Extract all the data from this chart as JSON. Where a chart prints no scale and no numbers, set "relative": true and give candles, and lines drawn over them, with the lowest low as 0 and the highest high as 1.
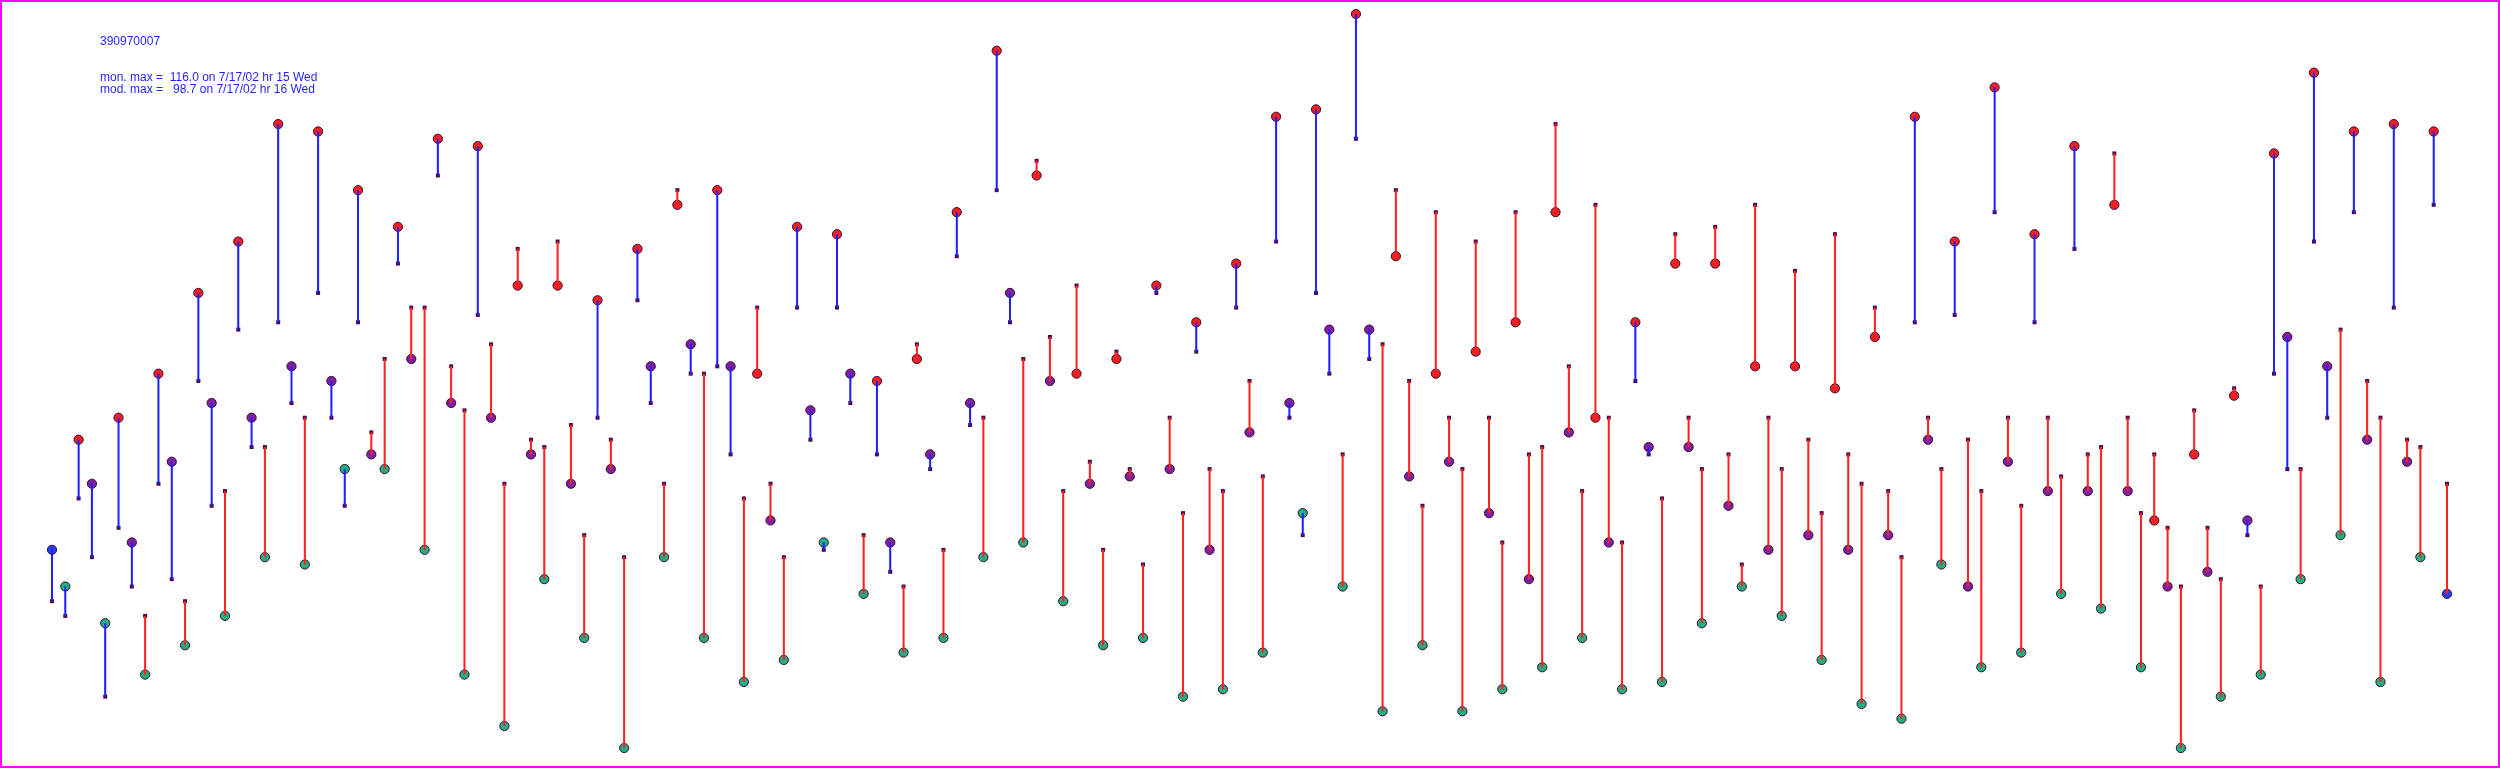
{
  "chart_data": {
    "type": "candlestick",
    "title": "390970007",
    "annotations": [
      "mon. max =  116.0 on 7/17/02 hr 15 Wed",
      "mod. max =   98.7 on 7/17/02 hr 16 Wed"
    ],
    "relative": true,
    "categories": [
      null,
      null,
      null,
      null,
      null,
      null,
      null,
      null,
      null,
      null,
      null,
      null,
      null,
      null,
      null,
      null,
      null,
      null,
      null,
      null,
      null,
      null,
      null,
      null,
      null,
      null,
      null,
      null,
      null,
      null,
      null,
      null,
      null,
      null,
      null,
      null,
      null,
      null,
      null,
      null,
      null,
      null,
      null,
      null,
      null,
      null,
      null,
      null,
      null,
      null,
      null,
      null,
      null,
      null,
      null,
      null,
      null,
      null,
      null,
      null,
      null,
      null,
      null,
      null,
      null,
      null,
      null,
      null,
      null,
      null,
      null,
      null,
      null,
      null,
      null,
      null,
      null,
      null,
      null,
      null,
      null,
      null,
      null,
      null,
      null,
      null,
      null,
      null,
      null,
      null,
      null,
      null,
      null,
      null,
      null,
      null,
      null,
      null,
      null,
      null,
      null,
      null,
      null,
      null,
      null,
      null,
      null,
      null,
      null,
      null,
      null,
      null,
      null,
      null,
      null,
      null,
      null,
      null,
      null,
      null,
      null,
      null,
      null,
      null,
      null,
      null,
      null,
      null,
      null,
      null,
      null,
      null,
      null,
      null,
      null,
      null,
      null,
      null,
      null,
      null,
      null,
      null,
      null,
      null,
      null,
      null,
      null,
      null,
      null,
      null,
      null,
      null,
      null,
      null,
      null,
      null,
      null,
      null,
      null,
      null,
      null,
      null,
      null,
      null,
      null,
      null,
      null,
      null,
      null,
      null,
      null,
      null,
      null,
      null,
      null,
      null,
      null,
      null,
      null,
      null,
      null
    ],
    "ohlc": [
      [
        0.27,
        0.27,
        0.2,
        0.2
      ],
      [
        0.22,
        0.22,
        0.18,
        0.18
      ],
      [
        0.42,
        0.42,
        0.34,
        0.34
      ],
      [
        0.36,
        0.36,
        0.26,
        0.26
      ],
      [
        0.17,
        0.17,
        0.07,
        0.07
      ],
      [
        0.45,
        0.45,
        0.3,
        0.3
      ],
      [
        0.28,
        0.28,
        0.22,
        0.22
      ],
      [
        0.1,
        0.18,
        0.1,
        0.18
      ],
      [
        0.51,
        0.51,
        0.36,
        0.36
      ],
      [
        0.39,
        0.39,
        0.23,
        0.23
      ],
      [
        0.14,
        0.2,
        0.14,
        0.2
      ],
      [
        0.62,
        0.62,
        0.5,
        0.5
      ],
      [
        0.47,
        0.47,
        0.33,
        0.33
      ],
      [
        0.18,
        0.35,
        0.18,
        0.35
      ],
      [
        0.69,
        0.69,
        0.57,
        0.57
      ],
      [
        0.45,
        0.45,
        0.41,
        0.41
      ],
      [
        0.26,
        0.41,
        0.26,
        0.41
      ],
      [
        0.85,
        0.85,
        0.58,
        0.58
      ],
      [
        0.52,
        0.52,
        0.47,
        0.47
      ],
      [
        0.25,
        0.45,
        0.25,
        0.45
      ],
      [
        0.84,
        0.84,
        0.62,
        0.62
      ],
      [
        0.5,
        0.5,
        0.45,
        0.45
      ],
      [
        0.38,
        0.38,
        0.33,
        0.33
      ],
      [
        0.76,
        0.76,
        0.58,
        0.58
      ],
      [
        0.4,
        0.43,
        0.4,
        0.43
      ],
      [
        0.38,
        0.53,
        0.38,
        0.53
      ],
      [
        0.71,
        0.71,
        0.66,
        0.66
      ],
      [
        0.53,
        0.6,
        0.53,
        0.6
      ],
      [
        0.27,
        0.6,
        0.27,
        0.6
      ],
      [
        0.83,
        0.83,
        0.78,
        0.78
      ],
      [
        0.47,
        0.52,
        0.47,
        0.52
      ],
      [
        0.1,
        0.46,
        0.1,
        0.46
      ],
      [
        0.82,
        0.82,
        0.59,
        0.59
      ],
      [
        0.45,
        0.55,
        0.45,
        0.55
      ],
      [
        0.03,
        0.36,
        0.03,
        0.36
      ],
      [
        0.63,
        0.68,
        0.63,
        0.68
      ],
      [
        0.4,
        0.42,
        0.4,
        0.42
      ],
      [
        0.23,
        0.41,
        0.23,
        0.41
      ],
      [
        0.63,
        0.69,
        0.63,
        0.69
      ],
      [
        0.36,
        0.44,
        0.36,
        0.44
      ],
      [
        0.15,
        0.29,
        0.15,
        0.29
      ],
      [
        0.61,
        0.61,
        0.45,
        0.45
      ],
      [
        0.38,
        0.42,
        0.38,
        0.42
      ],
      [
        0,
        0.26,
        0,
        0.26
      ],
      [
        0.68,
        0.68,
        0.61,
        0.61
      ],
      [
        0.52,
        0.52,
        0.47,
        0.47
      ],
      [
        0.26,
        0.36,
        0.26,
        0.36
      ],
      [
        0.74,
        0.76,
        0.74,
        0.76
      ],
      [
        0.55,
        0.55,
        0.51,
        0.51
      ],
      [
        0.15,
        0.51,
        0.15,
        0.51
      ],
      [
        0.76,
        0.76,
        0.52,
        0.52
      ],
      [
        0.52,
        0.52,
        0.4,
        0.4
      ],
      [
        0.09,
        0.34,
        0.09,
        0.34
      ],
      [
        0.51,
        0.6,
        0.51,
        0.6
      ],
      [
        0.31,
        0.36,
        0.31,
        0.36
      ],
      [
        0.12,
        0.26,
        0.12,
        0.26
      ],
      [
        0.71,
        0.71,
        0.6,
        0.6
      ],
      [
        0.46,
        0.46,
        0.42,
        0.42
      ],
      [
        0.28,
        0.28,
        0.27,
        0.27
      ],
      [
        0.7,
        0.7,
        0.6,
        0.6
      ],
      [
        0.51,
        0.51,
        0.47,
        0.47
      ],
      [
        0.21,
        0.29,
        0.21,
        0.29
      ],
      [
        0.5,
        0.5,
        0.4,
        0.4
      ],
      [
        0.28,
        0.28,
        0.24,
        0.24
      ],
      [
        0.13,
        0.22,
        0.13,
        0.22
      ],
      [
        0.53,
        0.55,
        0.53,
        0.55
      ],
      [
        0.4,
        0.4,
        0.38,
        0.38
      ],
      [
        0.15,
        0.27,
        0.15,
        0.27
      ],
      [
        0.73,
        0.73,
        0.67,
        0.67
      ],
      [
        0.47,
        0.47,
        0.44,
        0.44
      ],
      [
        0.26,
        0.45,
        0.26,
        0.45
      ],
      [
        0.95,
        0.95,
        0.76,
        0.76
      ],
      [
        0.62,
        0.62,
        0.58,
        0.58
      ],
      [
        0.28,
        0.53,
        0.28,
        0.53
      ],
      [
        0.78,
        0.8,
        0.78,
        0.8
      ],
      [
        0.5,
        0.56,
        0.5,
        0.56
      ],
      [
        0.2,
        0.35,
        0.2,
        0.35
      ],
      [
        0.51,
        0.63,
        0.51,
        0.63
      ],
      [
        0.36,
        0.39,
        0.36,
        0.39
      ],
      [
        0.14,
        0.27,
        0.14,
        0.27
      ],
      [
        0.53,
        0.54,
        0.53,
        0.54
      ],
      [
        0.37,
        0.38,
        0.37,
        0.38
      ],
      [
        0.15,
        0.25,
        0.15,
        0.25
      ],
      [
        0.63,
        0.63,
        0.62,
        0.62
      ],
      [
        0.38,
        0.45,
        0.38,
        0.45
      ],
      [
        0.07,
        0.32,
        0.07,
        0.32
      ],
      [
        0.58,
        0.58,
        0.54,
        0.54
      ],
      [
        0.27,
        0.38,
        0.27,
        0.38
      ],
      [
        0.08,
        0.35,
        0.08,
        0.35
      ],
      [
        0.66,
        0.66,
        0.6,
        0.6
      ],
      [
        0.43,
        0.5,
        0.43,
        0.5
      ],
      [
        0.13,
        0.37,
        0.13,
        0.37
      ],
      [
        0.86,
        0.86,
        0.69,
        0.69
      ],
      [
        0.47,
        0.47,
        0.45,
        0.45
      ],
      [
        0.32,
        0.32,
        0.29,
        0.29
      ],
      [
        0.87,
        0.87,
        0.62,
        0.62
      ],
      [
        0.57,
        0.57,
        0.51,
        0.51
      ],
      [
        0.22,
        0.4,
        0.22,
        0.4
      ],
      [
        1,
        1,
        0.83,
        0.83
      ],
      [
        0.57,
        0.57,
        0.53,
        0.53
      ],
      [
        0.05,
        0.55,
        0.05,
        0.55
      ],
      [
        0.67,
        0.76,
        0.67,
        0.76
      ],
      [
        0.37,
        0.5,
        0.37,
        0.5
      ],
      [
        0.14,
        0.33,
        0.14,
        0.33
      ],
      [
        0.51,
        0.73,
        0.51,
        0.73
      ],
      [
        0.39,
        0.45,
        0.39,
        0.45
      ],
      [
        0.05,
        0.38,
        0.05,
        0.38
      ],
      [
        0.54,
        0.69,
        0.54,
        0.69
      ],
      [
        0.32,
        0.45,
        0.32,
        0.45
      ],
      [
        0.08,
        0.28,
        0.08,
        0.28
      ],
      [
        0.58,
        0.73,
        0.58,
        0.73
      ],
      [
        0.23,
        0.4,
        0.23,
        0.4
      ],
      [
        0.11,
        0.41,
        0.11,
        0.41
      ],
      [
        0.73,
        0.85,
        0.73,
        0.85
      ],
      [
        0.43,
        0.52,
        0.43,
        0.52
      ],
      [
        0.15,
        0.35,
        0.15,
        0.35
      ],
      [
        0.45,
        0.74,
        0.45,
        0.74
      ],
      [
        0.28,
        0.45,
        0.28,
        0.45
      ],
      [
        0.08,
        0.28,
        0.08,
        0.28
      ],
      [
        0.58,
        0.58,
        0.5,
        0.5
      ],
      [
        0.41,
        0.41,
        0.4,
        0.4
      ],
      [
        0.09,
        0.34,
        0.09,
        0.34
      ],
      [
        0.66,
        0.7,
        0.66,
        0.7
      ],
      [
        0.41,
        0.45,
        0.41,
        0.45
      ],
      [
        0.17,
        0.38,
        0.17,
        0.38
      ],
      [
        0.66,
        0.71,
        0.66,
        0.71
      ],
      [
        0.33,
        0.4,
        0.33,
        0.4
      ],
      [
        0.22,
        0.25,
        0.22,
        0.25
      ],
      [
        0.52,
        0.74,
        0.52,
        0.74
      ],
      [
        0.27,
        0.45,
        0.27,
        0.45
      ],
      [
        0.18,
        0.38,
        0.18,
        0.38
      ],
      [
        0.52,
        0.65,
        0.52,
        0.65
      ],
      [
        0.29,
        0.42,
        0.29,
        0.42
      ],
      [
        0.12,
        0.32,
        0.12,
        0.32
      ],
      [
        0.49,
        0.7,
        0.49,
        0.7
      ],
      [
        0.27,
        0.4,
        0.27,
        0.4
      ],
      [
        0.06,
        0.36,
        0.06,
        0.36
      ],
      [
        0.56,
        0.6,
        0.56,
        0.6
      ],
      [
        0.29,
        0.35,
        0.29,
        0.35
      ],
      [
        0.04,
        0.26,
        0.04,
        0.26
      ],
      [
        0.86,
        0.86,
        0.58,
        0.58
      ],
      [
        0.42,
        0.45,
        0.42,
        0.45
      ],
      [
        0.25,
        0.38,
        0.25,
        0.38
      ],
      [
        0.69,
        0.69,
        0.59,
        0.59
      ],
      [
        0.22,
        0.42,
        0.22,
        0.42
      ],
      [
        0.11,
        0.35,
        0.11,
        0.35
      ],
      [
        0.9,
        0.9,
        0.73,
        0.73
      ],
      [
        0.39,
        0.45,
        0.39,
        0.45
      ],
      [
        0.13,
        0.33,
        0.13,
        0.33
      ],
      [
        0.7,
        0.7,
        0.58,
        0.58
      ],
      [
        0.35,
        0.45,
        0.35,
        0.45
      ],
      [
        0.21,
        0.37,
        0.21,
        0.37
      ],
      [
        0.82,
        0.82,
        0.68,
        0.68
      ],
      [
        0.35,
        0.4,
        0.35,
        0.4
      ],
      [
        0.19,
        0.41,
        0.19,
        0.41
      ],
      [
        0.74,
        0.81,
        0.74,
        0.81
      ],
      [
        0.35,
        0.45,
        0.35,
        0.45
      ],
      [
        0.11,
        0.32,
        0.11,
        0.32
      ],
      [
        0.31,
        0.4,
        0.31,
        0.4
      ],
      [
        0.22,
        0.3,
        0.22,
        0.3
      ],
      [
        0,
        0.22,
        0,
        0.22
      ],
      [
        0.4,
        0.46,
        0.4,
        0.46
      ],
      [
        0.24,
        0.3,
        0.24,
        0.3
      ],
      [
        0.07,
        0.23,
        0.07,
        0.23
      ],
      [
        0.48,
        0.49,
        0.48,
        0.49
      ],
      [
        0.31,
        0.31,
        0.29,
        0.29
      ],
      [
        0.1,
        0.22,
        0.1,
        0.22
      ],
      [
        0.81,
        0.81,
        0.51,
        0.51
      ],
      [
        0.56,
        0.56,
        0.38,
        0.38
      ],
      [
        0.23,
        0.38,
        0.23,
        0.38
      ],
      [
        0.92,
        0.92,
        0.69,
        0.69
      ],
      [
        0.52,
        0.52,
        0.45,
        0.45
      ],
      [
        0.29,
        0.57,
        0.29,
        0.57
      ],
      [
        0.84,
        0.84,
        0.73,
        0.73
      ],
      [
        0.42,
        0.5,
        0.42,
        0.5
      ],
      [
        0.09,
        0.45,
        0.09,
        0.45
      ],
      [
        0.85,
        0.85,
        0.6,
        0.6
      ],
      [
        0.39,
        0.42,
        0.39,
        0.42
      ],
      [
        0.26,
        0.41,
        0.26,
        0.41
      ],
      [
        0.84,
        0.84,
        0.74,
        0.74
      ],
      [
        0.21,
        0.36,
        0.21,
        0.36
      ]
    ],
    "colors": [
      "#2020ff",
      "#2020ff",
      "#2020ff",
      "#2020ff",
      "#2020ff",
      "#2020ff",
      "#2020ff",
      "#ff2020",
      "#2020ff",
      "#2020ff",
      "#ff2020",
      "#2020ff",
      "#2020ff",
      "#ff2020",
      "#2020ff",
      "#2020ff",
      "#ff2020",
      "#2020ff",
      "#2020ff",
      "#ff2020",
      "#2020ff",
      "#2020ff",
      "#2020ff",
      "#2020ff",
      "#ff2020",
      "#ff2020",
      "#2020ff",
      "#ff2020",
      "#ff2020",
      "#2020ff",
      "#ff2020",
      "#ff2020",
      "#2020ff",
      "#ff2020",
      "#ff2020",
      "#ff2020",
      "#ff2020",
      "#ff2020",
      "#ff2020",
      "#ff2020",
      "#ff2020",
      "#2020ff",
      "#ff2020",
      "#ff2020",
      "#2020ff",
      "#2020ff",
      "#ff2020",
      "#ff2020",
      "#2020ff",
      "#ff2020",
      "#2020ff",
      "#2020ff",
      "#ff2020",
      "#ff2020",
      "#ff2020",
      "#ff2020",
      "#2020ff",
      "#2020ff",
      "#2020ff",
      "#2020ff",
      "#2020ff",
      "#ff2020",
      "#2020ff",
      "#2020ff",
      "#ff2020",
      "#ff2020",
      "#2020ff",
      "#ff2020",
      "#2020ff",
      "#2020ff",
      "#ff2020",
      "#2020ff",
      "#2020ff",
      "#ff2020",
      "#ff2020",
      "#ff2020",
      "#ff2020",
      "#ff2020",
      "#ff2020",
      "#ff2020",
      "#ff2020",
      "#ff2020",
      "#ff2020",
      "#2020ff",
      "#ff2020",
      "#ff2020",
      "#2020ff",
      "#ff2020",
      "#ff2020",
      "#2020ff",
      "#ff2020",
      "#ff2020",
      "#2020ff",
      "#2020ff",
      "#2020ff",
      "#2020ff",
      "#2020ff",
      "#ff2020",
      "#2020ff",
      "#2020ff",
      "#ff2020",
      "#ff2020",
      "#ff2020",
      "#ff2020",
      "#ff2020",
      "#ff2020",
      "#ff2020",
      "#ff2020",
      "#ff2020",
      "#ff2020",
      "#ff2020",
      "#ff2020",
      "#ff2020",
      "#ff2020",
      "#ff2020",
      "#ff2020",
      "#ff2020",
      "#ff2020",
      "#ff2020",
      "#2020ff",
      "#2020ff",
      "#ff2020",
      "#ff2020",
      "#ff2020",
      "#ff2020",
      "#ff2020",
      "#ff2020",
      "#ff2020",
      "#ff2020",
      "#ff2020",
      "#ff2020",
      "#ff2020",
      "#ff2020",
      "#ff2020",
      "#ff2020",
      "#ff2020",
      "#ff2020",
      "#ff2020",
      "#ff2020",
      "#ff2020",
      "#2020ff",
      "#ff2020",
      "#ff2020",
      "#2020ff",
      "#ff2020",
      "#ff2020",
      "#2020ff",
      "#ff2020",
      "#ff2020",
      "#2020ff",
      "#ff2020",
      "#ff2020",
      "#2020ff",
      "#ff2020",
      "#ff2020",
      "#ff2020",
      "#ff2020",
      "#ff2020",
      "#ff2020",
      "#ff2020",
      "#ff2020",
      "#ff2020",
      "#ff2020",
      "#ff2020",
      "#ff2020",
      "#2020ff",
      "#ff2020",
      "#2020ff",
      "#2020ff",
      "#ff2020",
      "#2020ff",
      "#2020ff",
      "#ff2020",
      "#2020ff",
      "#ff2020",
      "#ff2020",
      "#2020ff",
      "#ff2020",
      "#ff2020",
      "#2020ff",
      "#ff2020"
    ],
    "series": [
      {
        "type": "scatter",
        "marker": "square",
        "color": "#4a0a4a",
        "values": [
          0.2,
          0.18,
          0.34,
          0.26,
          0.07,
          0.3,
          0.22,
          0.18,
          0.36,
          0.23,
          0.2,
          0.5,
          0.33,
          0.35,
          0.57,
          0.41,
          0.41,
          0.58,
          0.47,
          0.45,
          0.62,
          0.45,
          0.33,
          0.58,
          0.43,
          0.53,
          0.66,
          0.6,
          0.6,
          0.78,
          0.52,
          0.46,
          0.59,
          0.55,
          0.36,
          0.68,
          0.42,
          0.41,
          0.69,
          0.44,
          0.29,
          0.45,
          0.42,
          0.26,
          0.61,
          0.47,
          0.36,
          0.76,
          0.51,
          0.51,
          0.52,
          0.4,
          0.34,
          0.6,
          0.36,
          0.26,
          0.6,
          0.42,
          0.27,
          0.6,
          0.47,
          0.29,
          0.4,
          0.24,
          0.22,
          0.55,
          0.38,
          0.27,
          0.67,
          0.44,
          0.45,
          0.76,
          0.58,
          0.53,
          0.8,
          0.56,
          0.35,
          0.63,
          0.39,
          0.27,
          0.54,
          0.38,
          0.25,
          0.62,
          0.45,
          0.32,
          0.54,
          0.38,
          0.35,
          0.6,
          0.5,
          0.37,
          0.69,
          0.45,
          0.29,
          0.62,
          0.51,
          0.4,
          0.83,
          0.53,
          0.55,
          0.76,
          0.5,
          0.33,
          0.73,
          0.45,
          0.38,
          0.69,
          0.45,
          0.28,
          0.73,
          0.4,
          0.41,
          0.85,
          0.52,
          0.35,
          0.74,
          0.45,
          0.28,
          0.5,
          0.4,
          0.34,
          0.7,
          0.45,
          0.38,
          0.71,
          0.4,
          0.25,
          0.74,
          0.45,
          0.38,
          0.65,
          0.42,
          0.32,
          0.7,
          0.4,
          0.36,
          0.6,
          0.35,
          0.26,
          0.58,
          0.45,
          0.38,
          0.59,
          0.42,
          0.35,
          0.73,
          0.45,
          0.33,
          0.58,
          0.45,
          0.37,
          0.68,
          0.4,
          0.41,
          0.81,
          0.45,
          0.32,
          0.4,
          0.3,
          0.22,
          0.46,
          0.3,
          0.23,
          0.49,
          0.29,
          0.22,
          0.51,
          0.38,
          0.38,
          0.69,
          0.45,
          0.57,
          0.73,
          0.5,
          0.45,
          0.6,
          0.42,
          0.41,
          0.74,
          0.36
        ]
      },
      {
        "type": "scatter",
        "marker": "circle",
        "values": [
          0.27,
          0.22,
          0.42,
          0.36,
          0.17,
          0.45,
          0.28,
          0.1,
          0.51,
          0.39,
          0.14,
          0.62,
          0.47,
          0.18,
          0.69,
          0.45,
          0.26,
          0.85,
          0.52,
          0.25,
          0.84,
          0.5,
          0.38,
          0.76,
          0.4,
          0.38,
          0.71,
          0.53,
          0.27,
          0.83,
          0.47,
          0.1,
          0.82,
          0.45,
          0.03,
          0.63,
          0.4,
          0.23,
          0.63,
          0.36,
          0.15,
          0.61,
          0.38,
          0,
          0.68,
          0.52,
          0.26,
          0.74,
          0.55,
          0.15,
          0.76,
          0.52,
          0.09,
          0.51,
          0.31,
          0.12,
          0.71,
          0.46,
          0.28,
          0.7,
          0.51,
          0.21,
          0.5,
          0.28,
          0.13,
          0.53,
          0.4,
          0.15,
          0.73,
          0.47,
          0.26,
          0.95,
          0.62,
          0.28,
          0.78,
          0.5,
          0.2,
          0.51,
          0.36,
          0.14,
          0.53,
          0.37,
          0.15,
          0.63,
          0.38,
          0.07,
          0.58,
          0.27,
          0.08,
          0.66,
          0.43,
          0.13,
          0.86,
          0.47,
          0.32,
          0.87,
          0.57,
          0.22,
          1,
          0.57,
          0.05,
          0.67,
          0.37,
          0.14,
          0.51,
          0.39,
          0.05,
          0.54,
          0.32,
          0.08,
          0.58,
          0.23,
          0.11,
          0.73,
          0.43,
          0.15,
          0.45,
          0.28,
          0.08,
          0.58,
          0.41,
          0.09,
          0.66,
          0.41,
          0.17,
          0.66,
          0.33,
          0.22,
          0.52,
          0.27,
          0.18,
          0.52,
          0.29,
          0.12,
          0.49,
          0.27,
          0.06,
          0.56,
          0.29,
          0.04,
          0.86,
          0.42,
          0.25,
          0.69,
          0.22,
          0.11,
          0.9,
          0.39,
          0.13,
          0.7,
          0.35,
          0.21,
          0.82,
          0.35,
          0.19,
          0.74,
          0.35,
          0.11,
          0.31,
          0.22,
          0,
          0.4,
          0.24,
          0.07,
          0.48,
          0.31,
          0.1,
          0.81,
          0.56,
          0.23,
          0.92,
          0.52,
          0.29,
          0.84,
          0.42,
          0.09,
          0.85,
          0.39,
          0.26,
          0.84,
          0.21
        ],
        "colors": [
          "#2040f0",
          "#20b080",
          "#f02020",
          "#8020a0",
          "#20b080",
          "#f02020",
          "#8020a0",
          "#20b080",
          "#f02020",
          "#8020a0",
          "#20b080",
          "#f02020",
          "#8020a0",
          "#20b080",
          "#f02020",
          "#8020a0",
          "#20b080",
          "#f02020",
          "#8020a0",
          "#20b080",
          "#f02020",
          "#8020a0",
          "#20b080",
          "#f02020",
          "#8020a0",
          "#20b080",
          "#f02020",
          "#8020a0",
          "#20b080",
          "#f02020",
          "#8020a0",
          "#20b080",
          "#f02020",
          "#8020a0",
          "#20b080",
          "#f02020",
          "#8020a0",
          "#20b080",
          "#f02020",
          "#8020a0",
          "#20b080",
          "#f02020",
          "#8020a0",
          "#20b080",
          "#f02020",
          "#8020a0",
          "#20b080",
          "#f02020",
          "#8020a0",
          "#20b080",
          "#f02020",
          "#8020a0",
          "#20b080",
          "#f02020",
          "#8020a0",
          "#20b080",
          "#f02020",
          "#8020a0",
          "#20b080",
          "#f02020",
          "#8020a0",
          "#20b080",
          "#f02020",
          "#8020a0",
          "#20b080",
          "#f02020",
          "#8020a0",
          "#20b080",
          "#f02020",
          "#8020a0",
          "#20b080",
          "#f02020",
          "#8020a0",
          "#20b080",
          "#f02020",
          "#8020a0",
          "#20b080",
          "#f02020",
          "#8020a0",
          "#20b080",
          "#f02020",
          "#8020a0",
          "#20b080",
          "#f02020",
          "#8020a0",
          "#20b080",
          "#f02020",
          "#8020a0",
          "#20b080",
          "#f02020",
          "#8020a0",
          "#20b080",
          "#f02020",
          "#8020a0",
          "#20b080",
          "#f02020",
          "#8020a0",
          "#20b080",
          "#f02020",
          "#8020a0",
          "#20b080",
          "#f02020",
          "#8020a0",
          "#20b080",
          "#f02020",
          "#8020a0",
          "#20b080",
          "#f02020",
          "#8020a0",
          "#20b080",
          "#f02020",
          "#8020a0",
          "#20b080",
          "#f02020",
          "#8020a0",
          "#20b080",
          "#f02020",
          "#8020a0",
          "#20b080",
          "#f02020",
          "#8020a0",
          "#20b080",
          "#f02020",
          "#8020a0",
          "#20b080",
          "#f02020",
          "#8020a0",
          "#20b080",
          "#f02020",
          "#8020a0",
          "#20b080",
          "#f02020",
          "#8020a0",
          "#20b080",
          "#f02020",
          "#8020a0",
          "#20b080",
          "#f02020",
          "#8020a0",
          "#20b080",
          "#f02020",
          "#8020a0",
          "#20b080",
          "#f02020",
          "#8020a0",
          "#20b080",
          "#f02020",
          "#8020a0",
          "#20b080",
          "#f02020",
          "#8020a0",
          "#20b080",
          "#f02020",
          "#8020a0",
          "#20b080",
          "#f02020",
          "#8020a0",
          "#20b080",
          "#f02020",
          "#8020a0",
          "#20b080",
          "#f02020",
          "#8020a0",
          "#20b080",
          "#f02020",
          "#8020a0",
          "#20b080",
          "#f02020",
          "#8020a0",
          "#20b080",
          "#f02020",
          "#8020a0",
          "#20b080",
          "#f02020",
          "#8020a0",
          "#20b080",
          "#f02020",
          "#8020a0",
          "#20b080",
          "#f02020",
          "#2040f0"
        ]
      }
    ]
  }
}
